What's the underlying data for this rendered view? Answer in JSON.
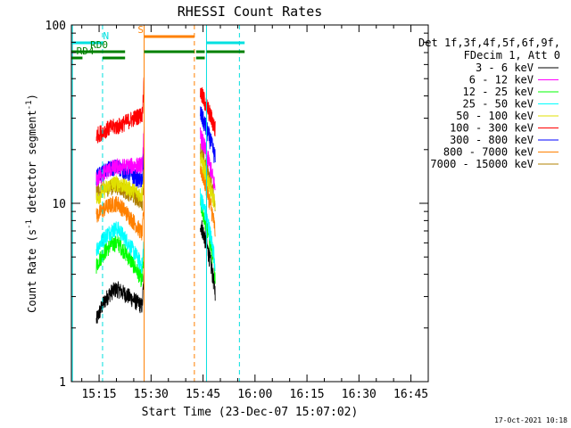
{
  "chart_data": {
    "type": "line",
    "title": "RHESSI Count Rates",
    "xlabel": "Start Time (23-Dec-07 15:07:02)",
    "ylabel_prefix": "Count Rate (s",
    "ylabel_sup1": "-1",
    "ylabel_mid": " detector segment",
    "ylabel_sup2": "-1",
    "ylabel_suffix": ")",
    "x_range_minutes": [
      0,
      103
    ],
    "y_scale": "log",
    "ylim": [
      1,
      100
    ],
    "x_ticks": [
      {
        "label": "15:15",
        "minute": 8
      },
      {
        "label": "15:30",
        "minute": 23
      },
      {
        "label": "15:45",
        "minute": 38
      },
      {
        "label": "16:00",
        "minute": 53
      },
      {
        "label": "16:15",
        "minute": 68
      },
      {
        "label": "16:30",
        "minute": 83
      },
      {
        "label": "16:45",
        "minute": 98
      }
    ],
    "y_ticks": [
      {
        "label": "1",
        "value": 1
      },
      {
        "label": "10",
        "value": 10
      },
      {
        "label": "100",
        "value": 100
      }
    ],
    "legend_header": [
      "Det 1f,3f,4f,5f,6f,9f,",
      "FDecim 1, Att 0"
    ],
    "series": [
      {
        "name": "3 - 6 keV",
        "color": "#000000",
        "seg1_start": 2.2,
        "seg1_mid": 3.3,
        "seg2_end": 2.6,
        "seg2_start": 7.8,
        "seg2_end2": 3.2
      },
      {
        "name": "6 - 12 keV",
        "color": "#ff00ff",
        "seg1_start": 13.5,
        "seg1_mid": 16.0,
        "seg2_end": 16.5,
        "seg2_start": 24.0,
        "seg2_end2": 12.0
      },
      {
        "name": "12 - 25 keV",
        "color": "#00ff00",
        "seg1_start": 4.5,
        "seg1_mid": 6.0,
        "seg2_end": 3.5,
        "seg2_start": 10.0,
        "seg2_end2": 4.0
      },
      {
        "name": "25 - 50 keV",
        "color": "#00ffff",
        "seg1_start": 5.5,
        "seg1_mid": 7.2,
        "seg2_end": 4.2,
        "seg2_start": 11.0,
        "seg2_end2": 4.6
      },
      {
        "name": "50 - 100 keV",
        "color": "#e0e000",
        "seg1_start": 10.5,
        "seg1_mid": 13.0,
        "seg2_end": 11.0,
        "seg2_start": 18.0,
        "seg2_end2": 9.5
      },
      {
        "name": "100 - 300 keV",
        "color": "#ff0000",
        "seg1_start": 24.0,
        "seg1_mid": 27.0,
        "seg2_end": 32.0,
        "seg2_start": 42.0,
        "seg2_end2": 26.0
      },
      {
        "name": "300 - 800 keV",
        "color": "#0000ff",
        "seg1_start": 14.0,
        "seg1_mid": 16.0,
        "seg2_end": 13.0,
        "seg2_start": 32.0,
        "seg2_end2": 18.0
      },
      {
        "name": "800 - 7000 keV",
        "color": "#ff8000",
        "seg1_start": 8.5,
        "seg1_mid": 10.0,
        "seg2_end": 6.5,
        "seg2_start": 16.0,
        "seg2_end2": 7.0
      },
      {
        "name": "7000 - 15000 keV",
        "color": "#b08000",
        "seg1_start": 11.5,
        "seg1_mid": 12.5,
        "seg2_end": 10.0,
        "seg2_start": 20.0,
        "seg2_end2": 10.0
      }
    ],
    "flag_bars": [
      {
        "label": "N",
        "color": "#00e0e0",
        "segments": [
          [
            0,
            9
          ],
          [
            39,
            50
          ]
        ],
        "label_minute": 10,
        "level": "upper"
      },
      {
        "label": "S",
        "color": "#ff8000",
        "segments": [
          [
            21,
            35.5
          ]
        ],
        "label_minute": 20,
        "level": "top"
      },
      {
        "label": "RD0",
        "color": "#008000",
        "segments": [
          [
            0,
            15.5
          ],
          [
            21,
            35.5
          ],
          [
            36,
            38.5
          ],
          [
            39,
            50
          ]
        ],
        "label_minute": 8,
        "level": "middle"
      },
      {
        "label": "RD4",
        "color": "#008000",
        "segments": [
          [
            0,
            3.2
          ],
          [
            9,
            15.5
          ],
          [
            36,
            38.5
          ]
        ],
        "label_minute": 4,
        "level": "lower"
      }
    ],
    "vertical_lines": [
      {
        "minute": 0.3,
        "color": "#00e0e0",
        "style": "solid"
      },
      {
        "minute": 9.0,
        "color": "#00e0e0",
        "style": "dashed"
      },
      {
        "minute": 21.0,
        "color": "#ff8000",
        "style": "solid"
      },
      {
        "minute": 35.5,
        "color": "#ff8000",
        "style": "dashed"
      },
      {
        "minute": 39.0,
        "color": "#00e0e0",
        "style": "solid"
      },
      {
        "minute": 48.5,
        "color": "#00e0e0",
        "style": "dashed"
      }
    ],
    "data_windows": [
      [
        7.2,
        21.0
      ],
      [
        37.2,
        41.5
      ]
    ],
    "timestamp": "17-Oct-2021 10:18"
  }
}
